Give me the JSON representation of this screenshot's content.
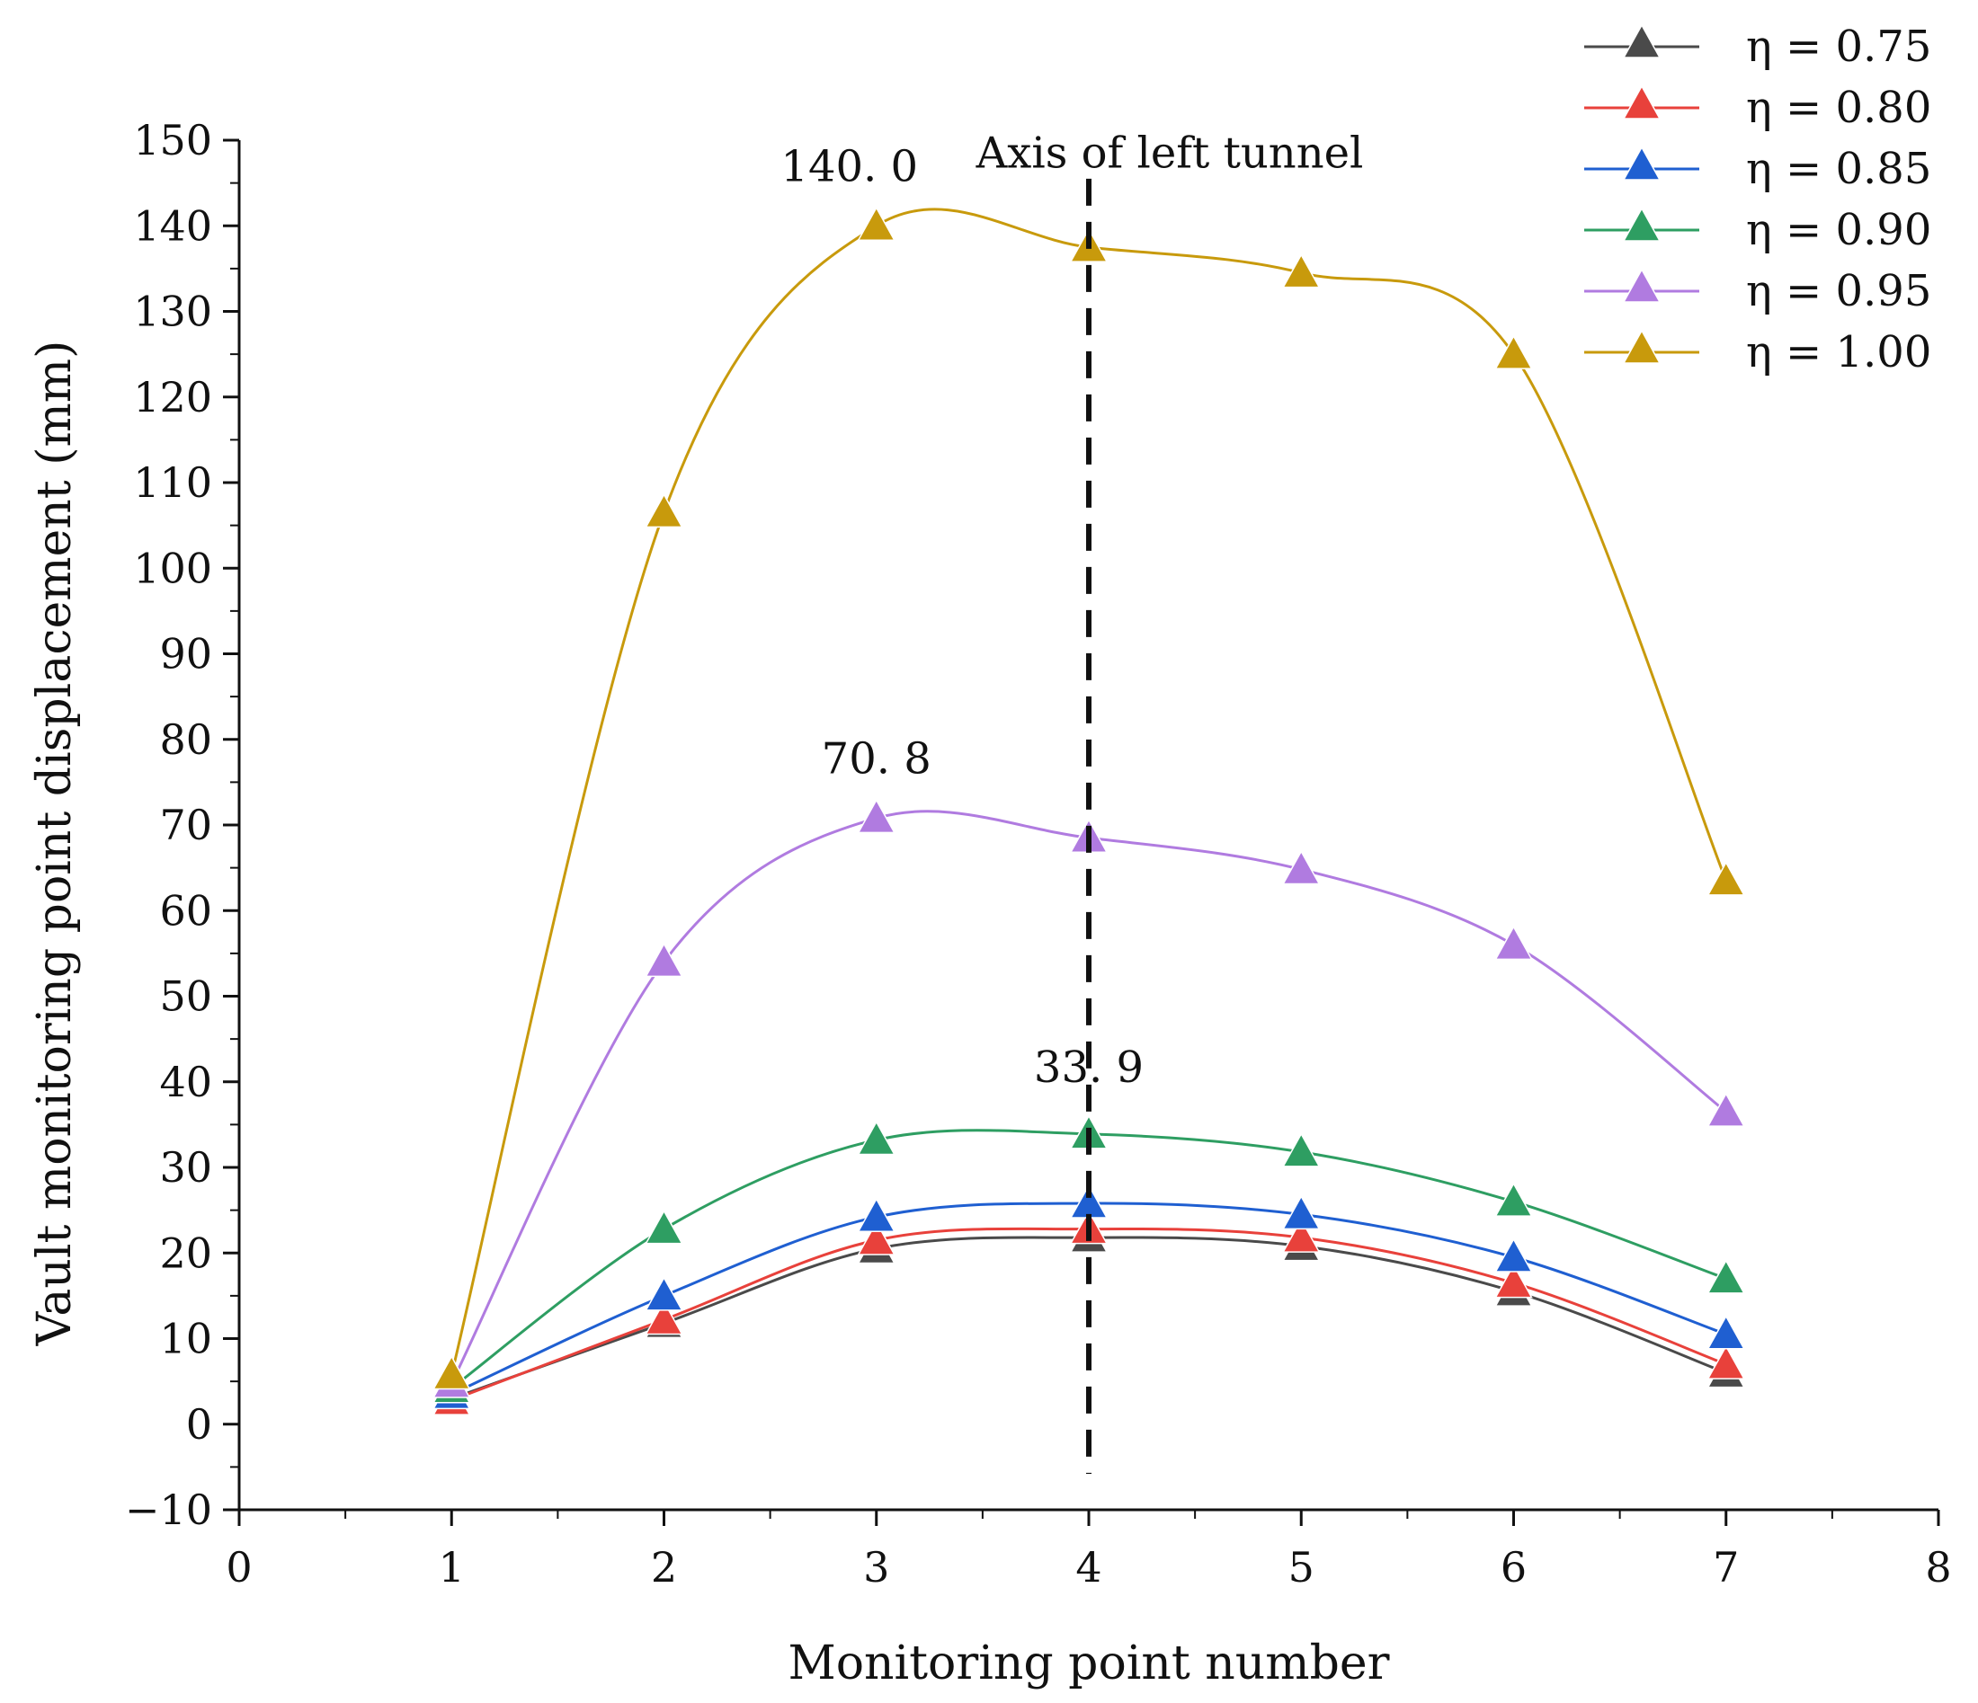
{
  "chart_data": {
    "type": "line",
    "title": "",
    "xlabel": "Monitoring point number",
    "ylabel": "Vault monitoring point displacement (mm)",
    "xlim": [
      0,
      8
    ],
    "ylim": [
      -10,
      150
    ],
    "x_ticks": [
      0,
      1,
      2,
      3,
      4,
      5,
      6,
      7,
      8
    ],
    "x_tick_labels": [
      "0",
      "1",
      "2",
      "3",
      "4",
      "5",
      "6",
      "7",
      "8"
    ],
    "y_ticks": [
      -10,
      0,
      10,
      20,
      30,
      40,
      50,
      60,
      70,
      80,
      90,
      100,
      110,
      120,
      130,
      140,
      150
    ],
    "y_tick_labels": [
      "−10",
      "0",
      "10",
      "20",
      "30",
      "40",
      "50",
      "60",
      "70",
      "80",
      "90",
      "100",
      "110",
      "120",
      "130",
      "140",
      "150"
    ],
    "grid": false,
    "legend_position": "top-right",
    "x": [
      1,
      2,
      3,
      4,
      5,
      6,
      7
    ],
    "series": [
      {
        "name": "η = 0.75",
        "color": "#4a4a4a",
        "values": [
          3.0,
          11.8,
          20.5,
          21.8,
          20.8,
          15.5,
          6.0
        ]
      },
      {
        "name": "η = 0.80",
        "color": "#e8413b",
        "values": [
          2.8,
          12.2,
          21.5,
          22.8,
          21.8,
          16.5,
          7.0
        ]
      },
      {
        "name": "η = 0.85",
        "color": "#1f5fd1",
        "values": [
          3.5,
          15.0,
          24.2,
          25.8,
          24.5,
          19.5,
          10.5
        ]
      },
      {
        "name": "η = 0.90",
        "color": "#2e9e62",
        "values": [
          4.2,
          22.8,
          33.2,
          33.9,
          31.8,
          26.0,
          17.0
        ]
      },
      {
        "name": "η = 0.95",
        "color": "#b07be0",
        "values": [
          4.8,
          54.0,
          70.8,
          68.5,
          64.8,
          56.0,
          36.5
        ]
      },
      {
        "name": "η = 1.00",
        "color": "#c89a0c",
        "values": [
          5.8,
          106.5,
          140.0,
          137.5,
          134.5,
          125.0,
          63.5
        ]
      }
    ],
    "reference_line": {
      "x": 4,
      "label": "Axis of left tunnel",
      "style": "dashed",
      "color": "#111111"
    },
    "annotations": [
      {
        "text": "140. 0",
        "x": 3,
        "y": 140.0
      },
      {
        "text": "70. 8",
        "x": 3,
        "y": 70.8
      },
      {
        "text": "33. 9",
        "x": 4,
        "y": 33.9
      }
    ]
  }
}
